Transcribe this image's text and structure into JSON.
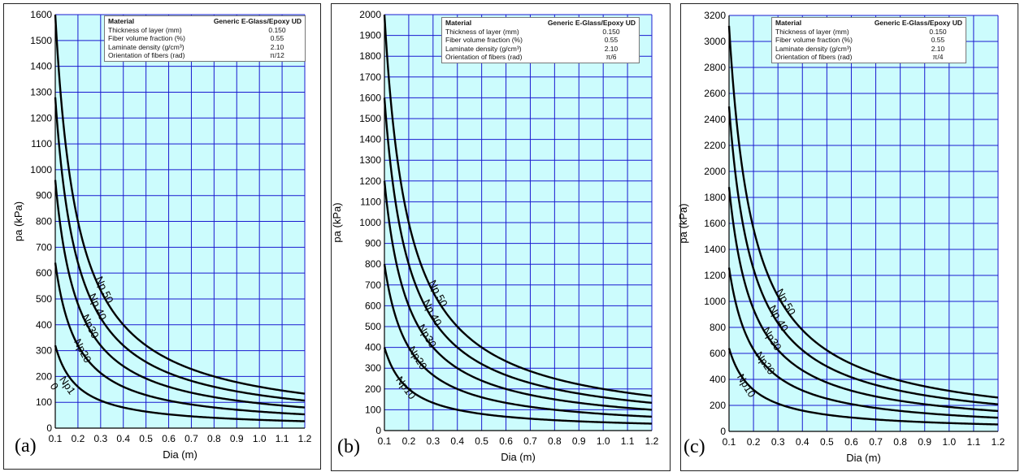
{
  "colors": {
    "plot_bg": "#ccfcfd",
    "grid": "#1a1ad0",
    "curve": "#000000"
  },
  "chart_data": [
    {
      "id": "a",
      "type": "line",
      "panel_label": "(a)",
      "xlabel": "Dia (m)",
      "ylabel": "pa (kPa)",
      "xlim": [
        0.1,
        1.2
      ],
      "ylim": [
        0,
        1600
      ],
      "xticks": [
        "0.1",
        "0.2",
        "0.3",
        "0.4",
        "0.5",
        "0.6",
        "0.7",
        "0.8",
        "0.9",
        "1.0",
        "1.1",
        "1.2"
      ],
      "yticks": [
        "0",
        "100",
        "200",
        "300",
        "400",
        "500",
        "600",
        "700",
        "800",
        "900",
        "1000",
        "1100",
        "1200",
        "1300",
        "1400",
        "1500",
        "1600"
      ],
      "grid": true,
      "info": {
        "material_key": "Material",
        "material_value": "Generic E-Glass/Epoxy UD",
        "rows": [
          {
            "key": "Thickness of layer (mm)",
            "value": "0.150"
          },
          {
            "key": "Fiber volume fraction  (%)",
            "value": "0.55"
          },
          {
            "key": "Laminate density  (g/cm³)",
            "value": "2.10"
          },
          {
            "key": "Orientation of fibers (rad)",
            "value": "π/12"
          }
        ]
      },
      "series": [
        {
          "name": "Np10",
          "label": "Np1\n0",
          "x": [
            0.1,
            0.2,
            0.3,
            0.4,
            0.5,
            0.6,
            0.7,
            0.8,
            0.9,
            1.0,
            1.1,
            1.2
          ],
          "y": [
            320,
            160,
            107,
            80,
            64,
            53,
            46,
            40,
            36,
            32,
            29,
            27
          ]
        },
        {
          "name": "Np20",
          "label": "Np20",
          "x": [
            0.1,
            0.2,
            0.3,
            0.4,
            0.5,
            0.6,
            0.7,
            0.8,
            0.9,
            1.0,
            1.1,
            1.2
          ],
          "y": [
            640,
            320,
            213,
            160,
            128,
            107,
            91,
            80,
            71,
            64,
            58,
            53
          ]
        },
        {
          "name": "Np30",
          "label": "Np30",
          "x": [
            0.1,
            0.2,
            0.3,
            0.4,
            0.5,
            0.6,
            0.7,
            0.8,
            0.9,
            1.0,
            1.1,
            1.2
          ],
          "y": [
            960,
            480,
            320,
            240,
            192,
            160,
            137,
            120,
            107,
            96,
            87,
            80
          ]
        },
        {
          "name": "Np 40",
          "label": "Np 40",
          "x": [
            0.1,
            0.2,
            0.3,
            0.4,
            0.5,
            0.6,
            0.7,
            0.8,
            0.9,
            1.0,
            1.1,
            1.2
          ],
          "y": [
            1280,
            640,
            427,
            320,
            256,
            213,
            183,
            160,
            142,
            128,
            116,
            107
          ]
        },
        {
          "name": "Np 50",
          "label": "Np 50",
          "x": [
            0.1,
            0.2,
            0.3,
            0.4,
            0.5,
            0.6,
            0.7,
            0.8,
            0.9,
            1.0,
            1.1,
            1.2
          ],
          "y": [
            1600,
            800,
            533,
            400,
            320,
            267,
            229,
            200,
            178,
            160,
            145,
            133
          ]
        }
      ]
    },
    {
      "id": "b",
      "type": "line",
      "panel_label": "(b)",
      "xlabel": "Dia (m)",
      "ylabel": "pa (kPa)",
      "xlim": [
        0.1,
        1.2
      ],
      "ylim": [
        0,
        2000
      ],
      "xticks": [
        "0.1",
        "0.2",
        "0.3",
        "0.4",
        "0.5",
        "0.6",
        "0.7",
        "0.8",
        "0.9",
        "1.0",
        "1.1",
        "1.2"
      ],
      "yticks": [
        "0",
        "100",
        "200",
        "300",
        "400",
        "500",
        "600",
        "700",
        "800",
        "900",
        "1000",
        "1100",
        "1200",
        "1300",
        "1400",
        "1500",
        "1600",
        "1700",
        "1800",
        "1900",
        "2000"
      ],
      "grid": true,
      "info": {
        "material_key": "Material",
        "material_value": "Generic E-Glass/Epoxy UD",
        "rows": [
          {
            "key": "Thickness of layer (mm)",
            "value": "0.150"
          },
          {
            "key": "Fiber volume fraction  (%)",
            "value": "0.55"
          },
          {
            "key": "Laminate density  (g/cm³)",
            "value": "2.10"
          },
          {
            "key": "Orientation of fibers (rad)",
            "value": "π/6"
          }
        ]
      },
      "series": [
        {
          "name": "Np10",
          "label": "Np10",
          "x": [
            0.1,
            0.2,
            0.3,
            0.4,
            0.5,
            0.6,
            0.7,
            0.8,
            0.9,
            1.0,
            1.1,
            1.2
          ],
          "y": [
            400,
            200,
            133,
            100,
            80,
            67,
            57,
            50,
            44,
            40,
            36,
            33
          ]
        },
        {
          "name": "Np20",
          "label": "Np20",
          "x": [
            0.1,
            0.2,
            0.3,
            0.4,
            0.5,
            0.6,
            0.7,
            0.8,
            0.9,
            1.0,
            1.1,
            1.2
          ],
          "y": [
            800,
            400,
            267,
            200,
            160,
            133,
            114,
            100,
            89,
            80,
            73,
            67
          ]
        },
        {
          "name": "Np30",
          "label": "Np30",
          "x": [
            0.1,
            0.2,
            0.3,
            0.4,
            0.5,
            0.6,
            0.7,
            0.8,
            0.9,
            1.0,
            1.1,
            1.2
          ],
          "y": [
            1200,
            600,
            400,
            300,
            240,
            200,
            171,
            150,
            133,
            120,
            109,
            100
          ]
        },
        {
          "name": "Np 40",
          "label": "Np 40",
          "x": [
            0.1,
            0.2,
            0.3,
            0.4,
            0.5,
            0.6,
            0.7,
            0.8,
            0.9,
            1.0,
            1.1,
            1.2
          ],
          "y": [
            1600,
            800,
            533,
            400,
            320,
            267,
            229,
            200,
            178,
            160,
            145,
            133
          ]
        },
        {
          "name": "Np 50",
          "label": "Np 50",
          "x": [
            0.1,
            0.2,
            0.3,
            0.4,
            0.5,
            0.6,
            0.7,
            0.8,
            0.9,
            1.0,
            1.1,
            1.2
          ],
          "y": [
            2000,
            1000,
            667,
            500,
            400,
            333,
            286,
            250,
            222,
            200,
            182,
            167
          ]
        }
      ]
    },
    {
      "id": "c",
      "type": "line",
      "panel_label": "(c)",
      "xlabel": "Dia (m)",
      "ylabel": "pa (kPa)",
      "xlim": [
        0.1,
        1.2
      ],
      "ylim": [
        0,
        3200
      ],
      "xticks": [
        "0.1",
        "0.2",
        "0.3",
        "0.4",
        "0.5",
        "0.6",
        "0.7",
        "0.8",
        "0.9",
        "1.0",
        "1.1",
        "1.2"
      ],
      "yticks": [
        "0",
        "200",
        "400",
        "600",
        "800",
        "1000",
        "1200",
        "1400",
        "1600",
        "1800",
        "2000",
        "2200",
        "2400",
        "2600",
        "2800",
        "3000",
        "3200"
      ],
      "grid": true,
      "info": {
        "material_key": "Material",
        "material_value": "Generic E-Glass/Epoxy UD",
        "rows": [
          {
            "key": "Thickness of layer (mm)",
            "value": "0.150"
          },
          {
            "key": "Fiber volume fraction  (%)",
            "value": "0.55"
          },
          {
            "key": "Laminate density  (g/cm³)",
            "value": "2.10"
          },
          {
            "key": "Orientation of fibers (rad)",
            "value": "π/4"
          }
        ]
      },
      "series": [
        {
          "name": "Np10",
          "label": "Np10",
          "x": [
            0.1,
            0.2,
            0.3,
            0.4,
            0.5,
            0.6,
            0.7,
            0.8,
            0.9,
            1.0,
            1.1,
            1.2
          ],
          "y": [
            640,
            320,
            213,
            160,
            128,
            107,
            91,
            80,
            71,
            64,
            58,
            53
          ]
        },
        {
          "name": "Np20",
          "label": "Np20",
          "x": [
            0.1,
            0.2,
            0.3,
            0.4,
            0.5,
            0.6,
            0.7,
            0.8,
            0.9,
            1.0,
            1.1,
            1.2
          ],
          "y": [
            1260,
            630,
            420,
            315,
            252,
            210,
            180,
            158,
            140,
            126,
            115,
            105
          ]
        },
        {
          "name": "Np30",
          "label": "Np30",
          "x": [
            0.1,
            0.2,
            0.3,
            0.4,
            0.5,
            0.6,
            0.7,
            0.8,
            0.9,
            1.0,
            1.1,
            1.2
          ],
          "y": [
            1880,
            940,
            627,
            470,
            376,
            313,
            269,
            235,
            209,
            188,
            171,
            157
          ]
        },
        {
          "name": "Np 40",
          "label": "Np 40",
          "x": [
            0.1,
            0.2,
            0.3,
            0.4,
            0.5,
            0.6,
            0.7,
            0.8,
            0.9,
            1.0,
            1.1,
            1.2
          ],
          "y": [
            2500,
            1250,
            833,
            625,
            500,
            417,
            357,
            313,
            278,
            250,
            227,
            208
          ]
        },
        {
          "name": "Np 50",
          "label": "Np 50",
          "x": [
            0.1,
            0.2,
            0.3,
            0.4,
            0.5,
            0.6,
            0.7,
            0.8,
            0.9,
            1.0,
            1.1,
            1.2
          ],
          "y": [
            3120,
            1560,
            1040,
            780,
            624,
            520,
            446,
            390,
            347,
            312,
            284,
            260
          ]
        }
      ]
    }
  ]
}
